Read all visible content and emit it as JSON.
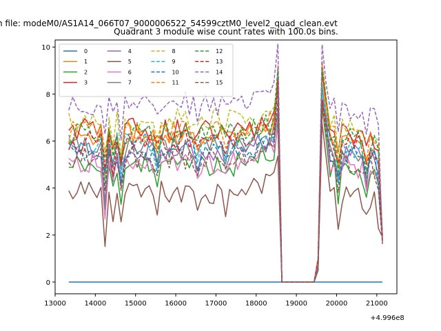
{
  "figure": {
    "suptitle": "n file: modeM0/AS1A14_066T07_9000006522_54599cztM0_level2_quad_clean.evt",
    "title": "Quadrant 3 module wise count rates with 100.0s bins.",
    "x_offset_label": "+4.996e8"
  },
  "chart_data": {
    "type": "line",
    "title": "Quadrant 3 module wise count rates with 100.0s bins.",
    "xlim": [
      13000,
      21500
    ],
    "ylim": [
      -0.5,
      10.3
    ],
    "xticks": [
      13000,
      14000,
      15000,
      16000,
      17000,
      18000,
      19000,
      20000,
      21000
    ],
    "xtick_labels": [
      "13000",
      "14000",
      "15000",
      "16000",
      "17000",
      "18000",
      "19000",
      "20000",
      "21000"
    ],
    "yticks": [
      0,
      2,
      4,
      6,
      8,
      10
    ],
    "ytick_labels": [
      "0",
      "2",
      "4",
      "6",
      "8",
      "10"
    ],
    "x_offset": "+4.996e8",
    "legend_position": "upper-left",
    "legend_columns": 4,
    "time_grid": {
      "start": 13340,
      "step": 100,
      "segments": [
        [
          13340,
          18640
        ],
        [
          18640,
          19540
        ],
        [
          19540,
          21140
        ]
      ]
    },
    "series": [
      {
        "name": "0",
        "color": "#1f77b4",
        "dashed": false,
        "level": 0.0
      },
      {
        "name": "1",
        "color": "#ff7f0e",
        "dashed": false,
        "level": 6.3
      },
      {
        "name": "2",
        "color": "#2ca02c",
        "dashed": false,
        "level": 5.0
      },
      {
        "name": "3",
        "color": "#d62728",
        "dashed": false,
        "level": 6.5
      },
      {
        "name": "4",
        "color": "#9467bd",
        "dashed": false,
        "level": 5.6
      },
      {
        "name": "5",
        "color": "#8c564b",
        "dashed": false,
        "level": 3.8
      },
      {
        "name": "6",
        "color": "#e377c2",
        "dashed": false,
        "level": 5.1
      },
      {
        "name": "7",
        "color": "#7f7f7f",
        "dashed": false,
        "level": 5.7
      },
      {
        "name": "8",
        "color": "#bcbd22",
        "dashed": true,
        "level": 6.9
      },
      {
        "name": "9",
        "color": "#17becf",
        "dashed": true,
        "level": 5.9
      },
      {
        "name": "10",
        "color": "#1f77b4",
        "dashed": true,
        "level": 5.5
      },
      {
        "name": "11",
        "color": "#ff7f0e",
        "dashed": true,
        "level": 6.4
      },
      {
        "name": "12",
        "color": "#2ca02c",
        "dashed": true,
        "level": 6.3
      },
      {
        "name": "13",
        "color": "#d62728",
        "dashed": true,
        "level": 6.0
      },
      {
        "name": "14",
        "color": "#9467bd",
        "dashed": true,
        "level": 7.6
      },
      {
        "name": "15",
        "color": "#8c564b",
        "dashed": true,
        "level": 5.3
      }
    ]
  }
}
